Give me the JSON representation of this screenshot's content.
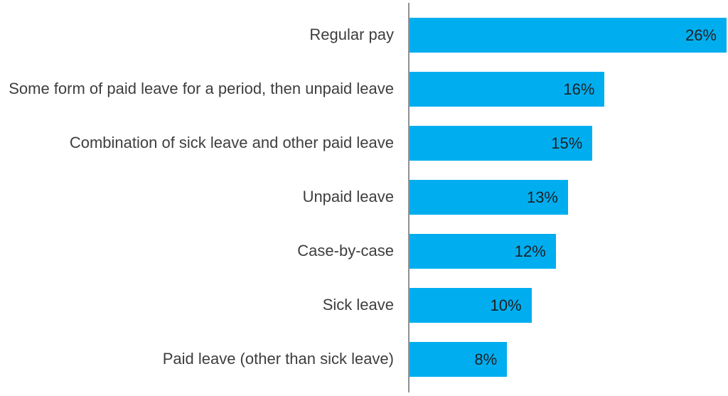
{
  "chart_data": {
    "type": "bar",
    "orientation": "horizontal",
    "title": "",
    "xlabel": "",
    "ylabel": "",
    "grid": false,
    "legend": null,
    "xlim": [
      0,
      26
    ],
    "categories": [
      "Regular pay",
      "Some form of paid leave for a period, then unpaid leave",
      "Combination of sick leave and other paid leave",
      "Unpaid leave",
      "Case-by-case",
      "Sick leave",
      "Paid leave (other than sick leave)"
    ],
    "values": [
      26,
      16,
      15,
      13,
      12,
      10,
      8
    ],
    "value_labels": [
      "26%",
      "16%",
      "15%",
      "13%",
      "12%",
      "10%",
      "8%"
    ]
  },
  "colors": {
    "bar": "#00AEEF",
    "axis": "#919195",
    "category_label": "#3E3E40",
    "value_label": "#1F1F21",
    "background": "#FFFFFF"
  }
}
